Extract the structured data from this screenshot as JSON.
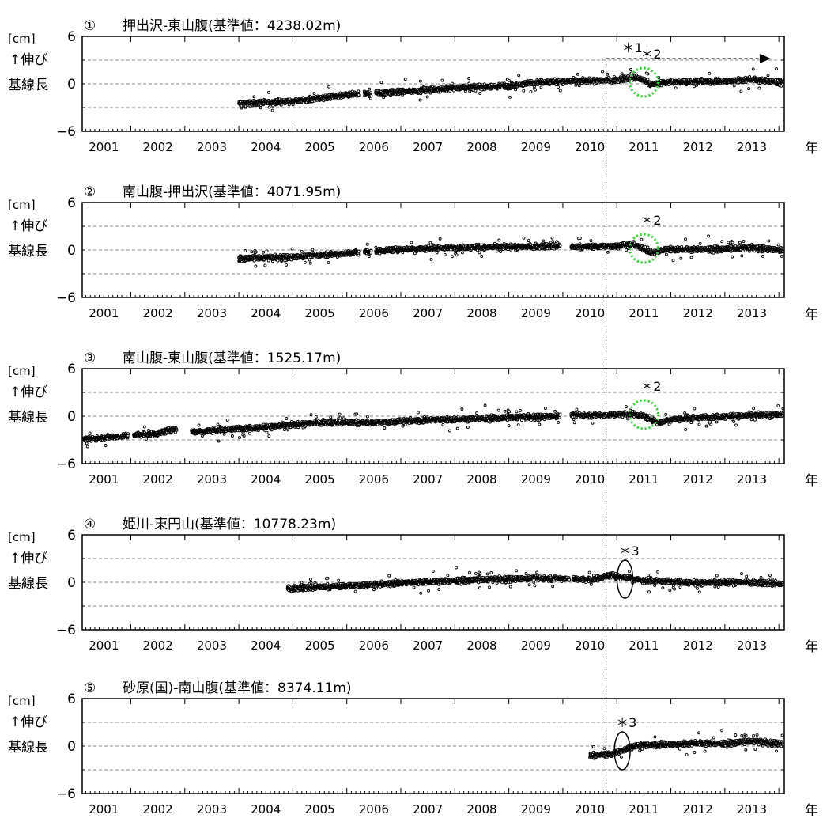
{
  "chart_data": [
    {
      "type": "scatter",
      "number": "①",
      "title": "押出沢-東山腹(基準値：4238.02m)",
      "ylabel_unit": "[cm]",
      "ylabel_line1": "↑伸び",
      "ylabel_line2": "基線長",
      "xlabel": "年",
      "ylim": [
        -6,
        6
      ],
      "yticks": [
        -6,
        0,
        6
      ],
      "xlim": [
        2000.6,
        2013.6
      ],
      "xticks": [
        "2001",
        "2002",
        "2003",
        "2004",
        "2005",
        "2006",
        "2007",
        "2008",
        "2009",
        "2010",
        "2011",
        "2012",
        "2013"
      ],
      "data_start": 2003.5,
      "gaps": [
        [
          2005.72,
          2005.82
        ],
        [
          2005.95,
          2006.03
        ]
      ],
      "trend": [
        [
          2003.5,
          -2.5
        ],
        [
          2004.5,
          -2.2
        ],
        [
          2005.5,
          -1.4
        ],
        [
          2006.5,
          -1.0
        ],
        [
          2007.5,
          -0.5
        ],
        [
          2008.5,
          -0.3
        ],
        [
          2009.0,
          0.2
        ],
        [
          2009.5,
          0.3
        ],
        [
          2010.0,
          0.4
        ],
        [
          2010.5,
          0.5
        ],
        [
          2010.8,
          0.8
        ],
        [
          2011.0,
          0.5
        ],
        [
          2011.15,
          -0.1
        ],
        [
          2011.4,
          0.2
        ],
        [
          2012.0,
          0.3
        ],
        [
          2012.5,
          0.3
        ],
        [
          2013.0,
          0.6
        ],
        [
          2013.5,
          0.2
        ]
      ],
      "annotations": [
        {
          "label": "＊1",
          "kind": "arrow",
          "x_start": 2010.3,
          "x_end": 2013.35,
          "y": 3.2
        },
        {
          "label": "＊2",
          "kind": "dotted-circle",
          "x": 2011.0,
          "y": 0.2
        }
      ]
    },
    {
      "type": "scatter",
      "number": "②",
      "title": "南山腹-押出沢(基準値：4071.95m)",
      "ylabel_unit": "[cm]",
      "ylabel_line1": "↑伸び",
      "ylabel_line2": "基線長",
      "xlabel": "年",
      "ylim": [
        -6,
        6
      ],
      "yticks": [
        -6,
        0,
        6
      ],
      "xlim": [
        2000.6,
        2013.6
      ],
      "xticks": [
        "2001",
        "2002",
        "2003",
        "2004",
        "2005",
        "2006",
        "2007",
        "2008",
        "2009",
        "2010",
        "2011",
        "2012",
        "2013"
      ],
      "data_start": 2003.5,
      "gaps": [
        [
          2005.72,
          2005.82
        ],
        [
          2005.95,
          2006.03
        ],
        [
          2009.45,
          2009.65
        ]
      ],
      "trend": [
        [
          2003.5,
          -1.1
        ],
        [
          2004.5,
          -0.9
        ],
        [
          2005.5,
          -0.4
        ],
        [
          2006.5,
          0.1
        ],
        [
          2007.5,
          0.3
        ],
        [
          2008.5,
          0.4
        ],
        [
          2009.4,
          0.5
        ],
        [
          2009.7,
          0.4
        ],
        [
          2010.5,
          0.5
        ],
        [
          2010.8,
          0.7
        ],
        [
          2011.0,
          0.2
        ],
        [
          2011.15,
          -0.4
        ],
        [
          2011.4,
          0.1
        ],
        [
          2012.0,
          0.1
        ],
        [
          2012.5,
          0.1
        ],
        [
          2013.0,
          0.3
        ],
        [
          2013.5,
          0.0
        ]
      ],
      "annotations": [
        {
          "label": "＊2",
          "kind": "dotted-circle",
          "x": 2011.0,
          "y": 0.2
        }
      ]
    },
    {
      "type": "scatter",
      "number": "③",
      "title": "南山腹-東山腹(基準値：1525.17m)",
      "ylabel_unit": "[cm]",
      "ylabel_line1": "↑伸び",
      "ylabel_line2": "基線長",
      "xlabel": "年",
      "ylim": [
        -6,
        6
      ],
      "yticks": [
        -6,
        0,
        6
      ],
      "xlim": [
        2000.6,
        2013.6
      ],
      "xticks": [
        "2001",
        "2002",
        "2003",
        "2004",
        "2005",
        "2006",
        "2007",
        "2008",
        "2009",
        "2010",
        "2011",
        "2012",
        "2013"
      ],
      "data_start": 2000.6,
      "gaps": [
        [
          2001.45,
          2001.55
        ],
        [
          2002.35,
          2002.62
        ],
        [
          2009.45,
          2009.65
        ]
      ],
      "trend": [
        [
          2000.6,
          -3.0
        ],
        [
          2001.0,
          -2.7
        ],
        [
          2001.5,
          -2.4
        ],
        [
          2002.0,
          -2.2
        ],
        [
          2002.3,
          -1.6
        ],
        [
          2002.7,
          -2.0
        ],
        [
          2003.0,
          -1.8
        ],
        [
          2004.0,
          -1.4
        ],
        [
          2005.0,
          -0.8
        ],
        [
          2006.0,
          -0.8
        ],
        [
          2007.0,
          -0.5
        ],
        [
          2008.0,
          -0.3
        ],
        [
          2009.0,
          -0.1
        ],
        [
          2009.4,
          0.0
        ],
        [
          2009.7,
          0.1
        ],
        [
          2010.5,
          0.2
        ],
        [
          2010.8,
          0.3
        ],
        [
          2011.0,
          0.0
        ],
        [
          2011.3,
          -0.8
        ],
        [
          2011.5,
          -0.4
        ],
        [
          2012.0,
          -0.2
        ],
        [
          2013.0,
          0.1
        ],
        [
          2013.5,
          0.2
        ]
      ],
      "annotations": [
        {
          "label": "＊2",
          "kind": "dotted-circle",
          "x": 2011.0,
          "y": 0.2
        }
      ]
    },
    {
      "type": "scatter",
      "number": "④",
      "title": "姫川-東円山(基準値：10778.23m)",
      "ylabel_unit": "[cm]",
      "ylabel_line1": "↑伸び",
      "ylabel_line2": "基線長",
      "xlabel": "年",
      "ylim": [
        -6,
        6
      ],
      "yticks": [
        -6,
        0,
        6
      ],
      "xlim": [
        2000.6,
        2013.6
      ],
      "xticks": [
        "2001",
        "2002",
        "2003",
        "2004",
        "2005",
        "2006",
        "2007",
        "2008",
        "2009",
        "2010",
        "2011",
        "2012",
        "2013"
      ],
      "data_start": 2004.4,
      "gaps": [
        [
          2009.62,
          2009.68
        ]
      ],
      "trend": [
        [
          2004.4,
          -0.8
        ],
        [
          2005.0,
          -0.6
        ],
        [
          2006.0,
          -0.3
        ],
        [
          2007.0,
          0.1
        ],
        [
          2008.0,
          0.3
        ],
        [
          2009.0,
          0.5
        ],
        [
          2009.6,
          0.5
        ],
        [
          2010.0,
          0.3
        ],
        [
          2010.4,
          0.9
        ],
        [
          2010.7,
          0.6
        ],
        [
          2011.0,
          0.2
        ],
        [
          2011.5,
          0.1
        ],
        [
          2012.0,
          -0.1
        ],
        [
          2012.5,
          0.0
        ],
        [
          2013.0,
          0.0
        ],
        [
          2013.5,
          -0.2
        ]
      ],
      "annotations": [
        {
          "label": "＊3",
          "kind": "ellipse",
          "x": 2010.65,
          "y": 0.4
        }
      ]
    },
    {
      "type": "scatter",
      "number": "⑤",
      "title": "砂原(国)-南山腹(基準値：8374.11m)",
      "ylabel_unit": "[cm]",
      "ylabel_line1": "↑伸び",
      "ylabel_line2": "基線長",
      "xlabel": "年",
      "ylim": [
        -6,
        6
      ],
      "yticks": [
        -6,
        0,
        6
      ],
      "xlim": [
        2000.6,
        2013.6
      ],
      "xticks": [
        "2001",
        "2002",
        "2003",
        "2004",
        "2005",
        "2006",
        "2007",
        "2008",
        "2009",
        "2010",
        "2011",
        "2012",
        "2013"
      ],
      "data_start": 2010.0,
      "gaps": [],
      "trend": [
        [
          2010.0,
          -1.2
        ],
        [
          2010.4,
          -1.0
        ],
        [
          2010.6,
          -0.6
        ],
        [
          2010.75,
          -0.1
        ],
        [
          2011.0,
          0.1
        ],
        [
          2011.5,
          0.2
        ],
        [
          2012.0,
          0.4
        ],
        [
          2012.5,
          0.3
        ],
        [
          2013.0,
          0.6
        ],
        [
          2013.5,
          0.3
        ]
      ],
      "annotations": [
        {
          "label": "＊3",
          "kind": "ellipse",
          "x": 2010.6,
          "y": -0.6
        }
      ]
    }
  ],
  "reference_line": {
    "x": 2010.3,
    "style": "dashed vertical line through all panels"
  }
}
